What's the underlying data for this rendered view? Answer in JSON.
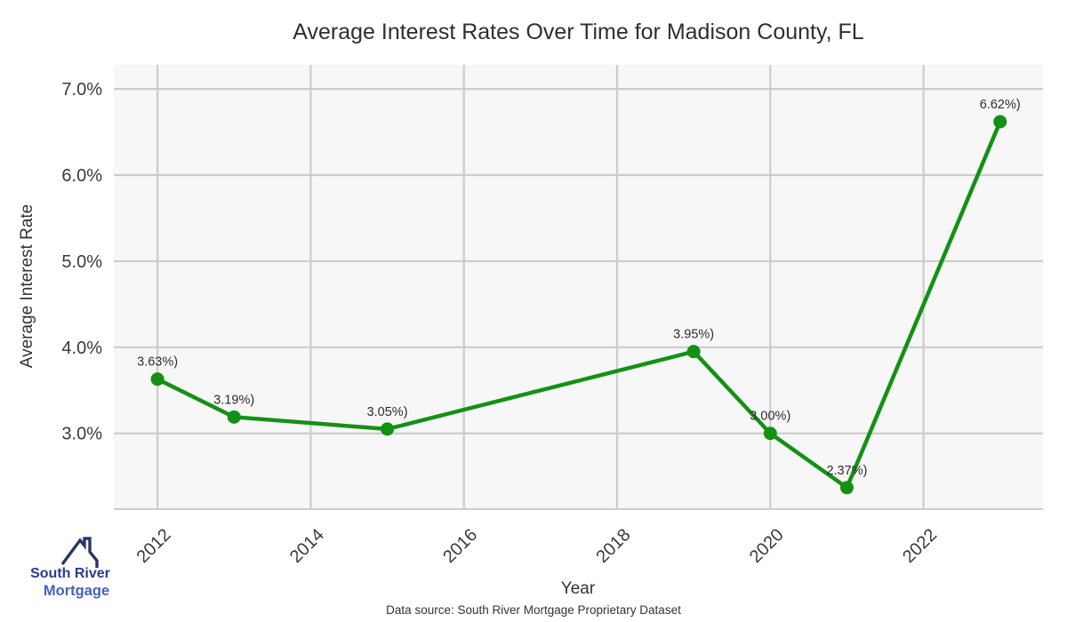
{
  "title": "Average Interest Rates Over Time for Madison County, FL",
  "chart_data": {
    "type": "line",
    "title": "Average Interest Rates Over Time for Madison County, FL",
    "xlabel": "Year",
    "ylabel": "Average Interest Rate",
    "x": [
      2012,
      2013,
      2015,
      2019,
      2020,
      2021,
      2023
    ],
    "values": [
      3.63,
      3.19,
      3.05,
      3.95,
      3.0,
      2.37,
      6.62
    ],
    "point_labels": [
      "3.63%)",
      "3.19%)",
      "3.05%)",
      "3.95%)",
      "3.00%)",
      "2.37%)",
      "6.62%)"
    ],
    "x_ticks": [
      {
        "value": 2012,
        "label": "2012"
      },
      {
        "value": 2014,
        "label": "2014"
      },
      {
        "value": 2016,
        "label": "2016"
      },
      {
        "value": 2018,
        "label": "2018"
      },
      {
        "value": 2020,
        "label": "2020"
      },
      {
        "value": 2022,
        "label": "2022"
      }
    ],
    "y_ticks": [
      {
        "value": 7.0,
        "label": "7.0%"
      },
      {
        "value": 6.0,
        "label": "6.0%"
      },
      {
        "value": 5.0,
        "label": "5.0%"
      },
      {
        "value": 4.0,
        "label": "4.0%"
      },
      {
        "value": 3.0,
        "label": "3.0%"
      }
    ],
    "xlim": [
      2011.43,
      2023.56
    ],
    "ylim": [
      2.12,
      7.28
    ],
    "grid": true,
    "legend": "none",
    "colors": {
      "line": "#149114",
      "marker": "#149114",
      "plot_bg": "#f7f7f7",
      "grid": "#cccccc",
      "tick_text": "#3a3a3a",
      "label_text": "#2d2d2d"
    }
  },
  "footer": {
    "source_text": "Data source: South River Mortgage Proprietary Dataset",
    "logo": {
      "line1": "South River",
      "line2": "Mortgage",
      "colors": {
        "roof": "#2a3568",
        "line1": "#2c3c8e",
        "line2": "#4263b6"
      }
    }
  }
}
